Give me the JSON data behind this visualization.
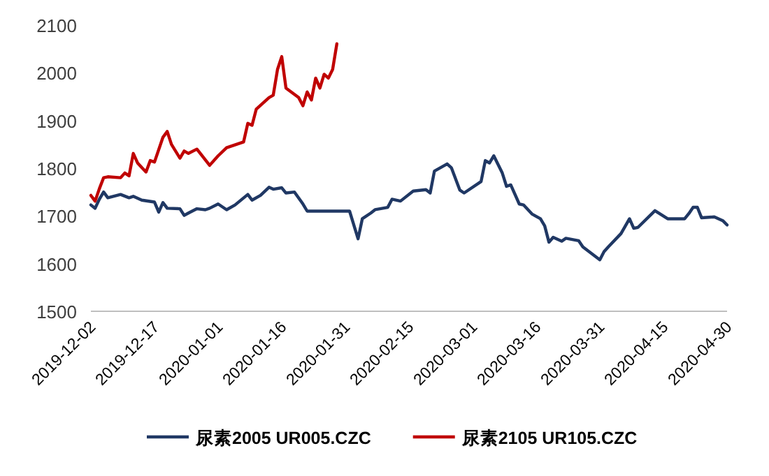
{
  "chart_data": {
    "type": "line",
    "xlim": [
      "2019-12-02",
      "2020-04-30"
    ],
    "xticks": [
      "2019-12-02",
      "2019-12-17",
      "2020-01-01",
      "2020-01-16",
      "2020-01-31",
      "2020-02-15",
      "2020-03-01",
      "2020-03-16",
      "2020-03-31",
      "2020-04-15",
      "2020-04-30"
    ],
    "ylim": [
      1500,
      2100
    ],
    "yticks": [
      1500,
      1600,
      1700,
      1800,
      1900,
      2000,
      2100
    ],
    "grid": false,
    "legend": "bottom",
    "marker": "none",
    "line_style": "solid",
    "series": [
      {
        "name": "尿素2005 UR005.CZC",
        "color": "#203864",
        "x": [
          "2019-12-02",
          "2019-12-03",
          "2019-12-04",
          "2019-12-05",
          "2019-12-06",
          "2019-12-09",
          "2019-12-11",
          "2019-12-12",
          "2019-12-14",
          "2019-12-17",
          "2019-12-18",
          "2019-12-19",
          "2019-12-20",
          "2019-12-23",
          "2019-12-24",
          "2019-12-25",
          "2019-12-27",
          "2019-12-29",
          "2019-12-30",
          "2020-01-01",
          "2020-01-03",
          "2020-01-05",
          "2020-01-08",
          "2020-01-09",
          "2020-01-11",
          "2020-01-13",
          "2020-01-14",
          "2020-01-16",
          "2020-01-17",
          "2020-01-19",
          "2020-01-21",
          "2020-01-22",
          "2020-02-01",
          "2020-02-03",
          "2020-02-04",
          "2020-02-06",
          "2020-02-07",
          "2020-02-10",
          "2020-02-11",
          "2020-02-13",
          "2020-02-16",
          "2020-02-19",
          "2020-02-20",
          "2020-02-21",
          "2020-02-24",
          "2020-02-25",
          "2020-02-27",
          "2020-02-28",
          "2020-03-03",
          "2020-03-04",
          "2020-03-05",
          "2020-03-06",
          "2020-03-08",
          "2020-03-09",
          "2020-03-10",
          "2020-03-12",
          "2020-03-13",
          "2020-03-15",
          "2020-03-17",
          "2020-03-18",
          "2020-03-19",
          "2020-03-20",
          "2020-03-22",
          "2020-03-23",
          "2020-03-26",
          "2020-03-27",
          "2020-03-31",
          "2020-04-01",
          "2020-04-02",
          "2020-04-05",
          "2020-04-07",
          "2020-04-08",
          "2020-04-09",
          "2020-04-13",
          "2020-04-16",
          "2020-04-20",
          "2020-04-21",
          "2020-04-22",
          "2020-04-23",
          "2020-04-24",
          "2020-04-27",
          "2020-04-29",
          "2020-04-30"
        ],
        "values": [
          1723,
          1716,
          1735,
          1750,
          1738,
          1745,
          1738,
          1741,
          1733,
          1729,
          1708,
          1728,
          1716,
          1715,
          1701,
          1706,
          1715,
          1713,
          1716,
          1725,
          1713,
          1723,
          1745,
          1733,
          1743,
          1760,
          1756,
          1759,
          1748,
          1750,
          1725,
          1710,
          1710,
          1652,
          1694,
          1706,
          1713,
          1718,
          1735,
          1731,
          1752,
          1755,
          1748,
          1794,
          1809,
          1801,
          1754,
          1748,
          1772,
          1816,
          1811,
          1826,
          1790,
          1762,
          1765,
          1725,
          1723,
          1704,
          1694,
          1679,
          1645,
          1655,
          1647,
          1653,
          1648,
          1635,
          1608,
          1625,
          1635,
          1663,
          1694,
          1674,
          1676,
          1711,
          1694,
          1694,
          1705,
          1718,
          1718,
          1696,
          1698,
          1690,
          1681
        ]
      },
      {
        "name": "尿素2105 UR105.CZC",
        "color": "#c00000",
        "x": [
          "2019-12-02",
          "2019-12-03",
          "2019-12-04",
          "2019-12-05",
          "2019-12-06",
          "2019-12-09",
          "2019-12-10",
          "2019-12-11",
          "2019-12-12",
          "2019-12-13",
          "2019-12-15",
          "2019-12-16",
          "2019-12-17",
          "2019-12-19",
          "2019-12-20",
          "2019-12-21",
          "2019-12-23",
          "2019-12-24",
          "2019-12-25",
          "2019-12-27",
          "2019-12-30",
          "2020-01-01",
          "2020-01-03",
          "2020-01-07",
          "2020-01-08",
          "2020-01-09",
          "2020-01-10",
          "2020-01-13",
          "2020-01-14",
          "2020-01-15",
          "2020-01-16",
          "2020-01-17",
          "2020-01-20",
          "2020-01-21",
          "2020-01-22",
          "2020-01-23",
          "2020-01-24",
          "2020-01-25",
          "2020-01-26",
          "2020-01-27",
          "2020-01-28",
          "2020-01-29"
        ],
        "values": [
          1743,
          1731,
          1757,
          1780,
          1782,
          1780,
          1790,
          1784,
          1831,
          1811,
          1792,
          1816,
          1813,
          1865,
          1877,
          1850,
          1821,
          1836,
          1831,
          1840,
          1806,
          1826,
          1843,
          1855,
          1894,
          1890,
          1924,
          1948,
          1953,
          2007,
          2034,
          1968,
          1948,
          1931,
          1960,
          1943,
          1989,
          1968,
          1997,
          1989,
          2007,
          2061
        ]
      }
    ]
  }
}
